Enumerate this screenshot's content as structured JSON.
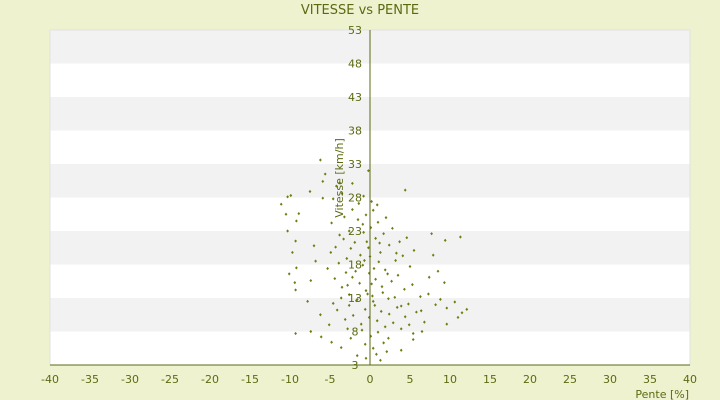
{
  "chart_data": {
    "type": "scatter",
    "title": "VITESSE vs PENTE",
    "xlabel": "Pente [%]",
    "ylabel": "Vitesse [km/h]",
    "xlim": [
      -40,
      40
    ],
    "ylim": [
      3,
      53
    ],
    "x_ticks": [
      -40,
      -35,
      -30,
      -25,
      -20,
      -15,
      -10,
      -5,
      0,
      5,
      10,
      15,
      20,
      25,
      30,
      35,
      40
    ],
    "y_ticks": [
      3,
      8,
      13,
      18,
      23,
      28,
      33,
      38,
      43,
      48,
      53
    ],
    "grid": "horizontal alternating bands",
    "colors": {
      "page_background": "#eef2cf",
      "band_light": "#ffffff",
      "band_dark": "#f2f2f2",
      "axis": "#5b6a12",
      "marker": "#6e7f12"
    },
    "marker": "small diamond",
    "series": [
      {
        "values": [
          [
            -6.2,
            33.6
          ],
          [
            -5.9,
            30.4
          ],
          [
            -5.6,
            31.5
          ],
          [
            -4.2,
            29.7
          ],
          [
            -3.8,
            30.2
          ],
          [
            -4.6,
            27.8
          ],
          [
            -3.5,
            28.6
          ],
          [
            -2.2,
            30.1
          ],
          [
            -0.2,
            32.0
          ],
          [
            4.4,
            29.1
          ],
          [
            -11.1,
            27.0
          ],
          [
            -10.3,
            28.1
          ],
          [
            -9.9,
            28.3
          ],
          [
            -7.5,
            28.9
          ],
          [
            -5.9,
            27.9
          ],
          [
            -8.9,
            25.6
          ],
          [
            -9.2,
            24.5
          ],
          [
            -10.5,
            25.5
          ],
          [
            -10.3,
            23.0
          ],
          [
            -9.3,
            21.5
          ],
          [
            -9.7,
            19.8
          ],
          [
            -9.2,
            17.5
          ],
          [
            -10.1,
            16.6
          ],
          [
            -9.4,
            15.3
          ],
          [
            -9.3,
            14.2
          ],
          [
            -7.0,
            20.8
          ],
          [
            -6.8,
            18.5
          ],
          [
            -7.4,
            15.6
          ],
          [
            -7.8,
            12.5
          ],
          [
            -6.2,
            10.5
          ],
          [
            -7.4,
            8.0
          ],
          [
            -9.3,
            7.7
          ],
          [
            -6.1,
            7.2
          ],
          [
            -5.1,
            9.0
          ],
          [
            -4.8,
            6.4
          ],
          [
            -3.6,
            5.6
          ],
          [
            -4.6,
            12.2
          ],
          [
            -2.8,
            8.4
          ],
          [
            7.7,
            22.6
          ],
          [
            7.9,
            19.4
          ],
          [
            9.4,
            21.6
          ],
          [
            8.5,
            17.0
          ],
          [
            7.4,
            16.1
          ],
          [
            9.3,
            15.3
          ],
          [
            10.6,
            12.4
          ],
          [
            11.5,
            10.8
          ],
          [
            12.1,
            11.3
          ],
          [
            9.6,
            9.1
          ],
          [
            11.0,
            10.1
          ],
          [
            7.3,
            13.6
          ],
          [
            8.2,
            12.0
          ],
          [
            6.4,
            11.1
          ],
          [
            11.3,
            22.1
          ],
          [
            6.8,
            9.4
          ],
          [
            9.6,
            11.5
          ],
          [
            6.5,
            8.0
          ],
          [
            5.4,
            6.8
          ],
          [
            8.8,
            12.8
          ],
          [
            1.7,
            6.3
          ],
          [
            0.8,
            4.6
          ],
          [
            0.4,
            5.5
          ],
          [
            2.1,
            5.0
          ],
          [
            -0.5,
            4.0
          ],
          [
            -1.6,
            4.4
          ],
          [
            1.3,
            3.7
          ],
          [
            3.9,
            5.2
          ],
          [
            2.3,
            7.0
          ],
          [
            -2.4,
            7.0
          ],
          [
            -4.8,
            24.2
          ],
          [
            -4.3,
            20.6
          ],
          [
            -3.8,
            22.4
          ],
          [
            -3.2,
            25.1
          ],
          [
            -2.9,
            18.9
          ],
          [
            -2.6,
            23.0
          ],
          [
            -2.2,
            26.2
          ],
          [
            -1.9,
            21.3
          ],
          [
            -1.5,
            24.7
          ],
          [
            -1.2,
            19.4
          ],
          [
            -0.8,
            22.8
          ],
          [
            -0.5,
            25.4
          ],
          [
            -0.2,
            20.5
          ],
          [
            0.1,
            23.5
          ],
          [
            0.4,
            26.1
          ],
          [
            0.7,
            21.9
          ],
          [
            1.0,
            24.3
          ],
          [
            1.3,
            19.8
          ],
          [
            1.7,
            22.6
          ],
          [
            2.0,
            25.0
          ],
          [
            2.4,
            20.9
          ],
          [
            2.8,
            23.4
          ],
          [
            3.2,
            18.6
          ],
          [
            3.7,
            21.4
          ],
          [
            4.1,
            19.3
          ],
          [
            4.6,
            22.0
          ],
          [
            5.0,
            17.7
          ],
          [
            5.5,
            20.1
          ],
          [
            -5.3,
            17.4
          ],
          [
            -4.9,
            19.8
          ],
          [
            -4.4,
            15.9
          ],
          [
            -3.9,
            18.2
          ],
          [
            -3.5,
            14.6
          ],
          [
            -3.0,
            16.8
          ],
          [
            -2.6,
            13.5
          ],
          [
            -2.2,
            16.1
          ],
          [
            -1.7,
            12.6
          ],
          [
            -1.3,
            15.2
          ],
          [
            -0.9,
            17.9
          ],
          [
            -0.5,
            14.1
          ],
          [
            -0.1,
            16.7
          ],
          [
            0.3,
            13.3
          ],
          [
            0.7,
            15.8
          ],
          [
            1.1,
            18.4
          ],
          [
            1.5,
            14.7
          ],
          [
            1.9,
            17.2
          ],
          [
            2.3,
            12.9
          ],
          [
            2.7,
            15.5
          ],
          [
            3.1,
            13.1
          ],
          [
            3.5,
            16.4
          ],
          [
            3.9,
            11.8
          ],
          [
            4.3,
            14.3
          ],
          [
            4.8,
            12.1
          ],
          [
            5.3,
            15.0
          ],
          [
            5.8,
            10.9
          ],
          [
            6.3,
            13.2
          ],
          [
            -4.1,
            11.2
          ],
          [
            -3.6,
            13.0
          ],
          [
            -3.1,
            9.8
          ],
          [
            -2.6,
            11.9
          ],
          [
            -2.1,
            10.4
          ],
          [
            -1.6,
            12.8
          ],
          [
            -1.1,
            9.1
          ],
          [
            -0.6,
            11.3
          ],
          [
            -0.1,
            10.1
          ],
          [
            0.4,
            12.5
          ],
          [
            0.9,
            9.6
          ],
          [
            1.4,
            11.0
          ],
          [
            1.9,
            8.7
          ],
          [
            2.4,
            10.6
          ],
          [
            2.9,
            9.3
          ],
          [
            3.4,
            11.6
          ],
          [
            3.9,
            8.4
          ],
          [
            4.4,
            10.2
          ],
          [
            4.9,
            9.0
          ],
          [
            5.4,
            7.7
          ],
          [
            -1.4,
            27.1
          ],
          [
            -0.8,
            28.2
          ],
          [
            0.2,
            27.4
          ],
          [
            0.9,
            26.9
          ],
          [
            -0.4,
            21.4
          ],
          [
            0.0,
            19.2
          ],
          [
            0.5,
            17.4
          ],
          [
            -0.7,
            18.6
          ],
          [
            0.2,
            15.1
          ],
          [
            -0.3,
            13.6
          ],
          [
            0.6,
            11.9
          ],
          [
            -0.9,
            24.0
          ],
          [
            1.2,
            21.2
          ],
          [
            -2.4,
            20.4
          ],
          [
            -1.8,
            17.0
          ],
          [
            2.2,
            16.6
          ],
          [
            -2.8,
            14.9
          ],
          [
            3.3,
            19.7
          ],
          [
            -3.3,
            21.8
          ],
          [
            1.6,
            13.8
          ],
          [
            -1.0,
            8.2
          ],
          [
            0.1,
            7.3
          ],
          [
            -0.6,
            6.1
          ],
          [
            1.0,
            7.9
          ]
        ]
      }
    ]
  }
}
